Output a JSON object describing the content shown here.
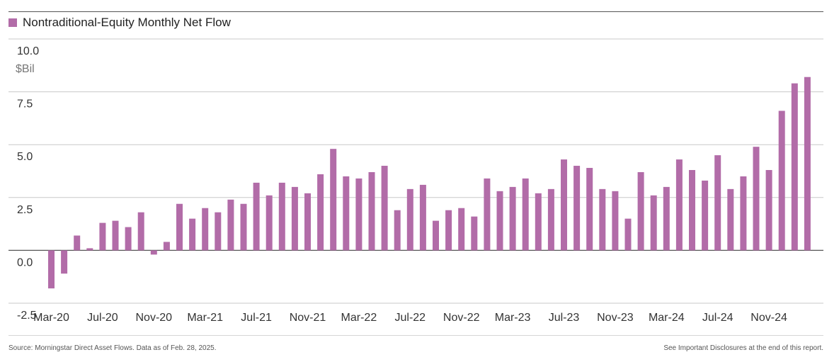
{
  "chart_data": {
    "type": "bar",
    "title": "",
    "series": [
      {
        "name": "Nontraditional-Equity Monthly Net Flow",
        "color": "#b26ca8",
        "values": [
          -1.8,
          -1.1,
          0.7,
          0.1,
          1.3,
          1.4,
          1.1,
          1.8,
          -0.2,
          0.4,
          2.2,
          1.5,
          2.0,
          1.8,
          2.4,
          2.2,
          3.2,
          2.6,
          3.2,
          3.0,
          2.7,
          3.6,
          4.8,
          3.5,
          3.4,
          3.7,
          4.0,
          1.9,
          2.9,
          3.1,
          1.4,
          1.9,
          2.0,
          1.6,
          3.4,
          2.8,
          3.0,
          3.4,
          2.7,
          2.9,
          4.3,
          4.0,
          3.9,
          2.9,
          2.8,
          1.5,
          3.7,
          2.6,
          3.0,
          4.3,
          3.8,
          3.3,
          4.5,
          2.9,
          3.5,
          4.9,
          3.8,
          6.6,
          7.9,
          8.2
        ]
      }
    ],
    "x_tick_labels": [
      "Mar-20",
      "Jul-20",
      "Nov-20",
      "Mar-21",
      "Jul-21",
      "Nov-21",
      "Mar-22",
      "Jul-22",
      "Nov-22",
      "Mar-23",
      "Jul-23",
      "Nov-23",
      "Mar-24",
      "Jul-24",
      "Nov-24"
    ],
    "x_tick_every": 4,
    "y_ticks": [
      "10.0",
      "7.5",
      "5.0",
      "2.5",
      "0.0",
      "-2.5"
    ],
    "y_tick_values": [
      10,
      7.5,
      5,
      2.5,
      0,
      -2.5
    ],
    "ylim": [
      -2.5,
      10
    ],
    "ylabel": "$Bil",
    "grid": true,
    "legend": "top-left"
  },
  "footer": {
    "source": "Source: Morningstar Direct Asset Flows. Data as of Feb. 28, 2025.",
    "disclosure": "See Important Disclosures at the end of this report."
  }
}
